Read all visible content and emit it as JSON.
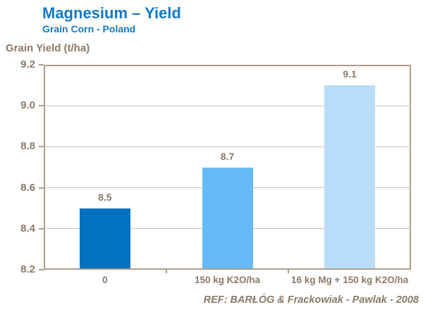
{
  "header": {
    "title": "Magnesium – Yield",
    "subtitle": "Grain Corn - Poland"
  },
  "chart_data": {
    "type": "bar",
    "title": "Magnesium – Yield",
    "subtitle": "Grain Corn - Poland",
    "ylabel": "Grain Yield (t/ha)",
    "xlabel": "",
    "categories": [
      "0",
      "150 kg K2O/ha",
      "16 kg Mg + 150 kg K2O/ha"
    ],
    "values": [
      8.5,
      8.7,
      9.1
    ],
    "value_labels": [
      "8.5",
      "8.7",
      "9.1"
    ],
    "bar_colors": [
      "#0072bf",
      "#66bbf7",
      "#b9dcfa"
    ],
    "ylim": [
      8.2,
      9.2
    ],
    "yticks": [
      8.2,
      8.4,
      8.6,
      8.8,
      9.0,
      9.2
    ],
    "ytick_labels": [
      "8.2",
      "8.4",
      "8.6",
      "8.8",
      "9.0",
      "9.2"
    ],
    "grid": true,
    "legend_position": "none"
  },
  "footer": {
    "ref": "REF:  BARŁÓG & Frackowiak - Pawlak - 2008"
  },
  "colors": {
    "title_blue": "#1179c7",
    "axis_text": "#8a7a6a",
    "grid_line": "#c9c2b8",
    "plot_border": "#ab9e90",
    "background": "#ffffff"
  }
}
